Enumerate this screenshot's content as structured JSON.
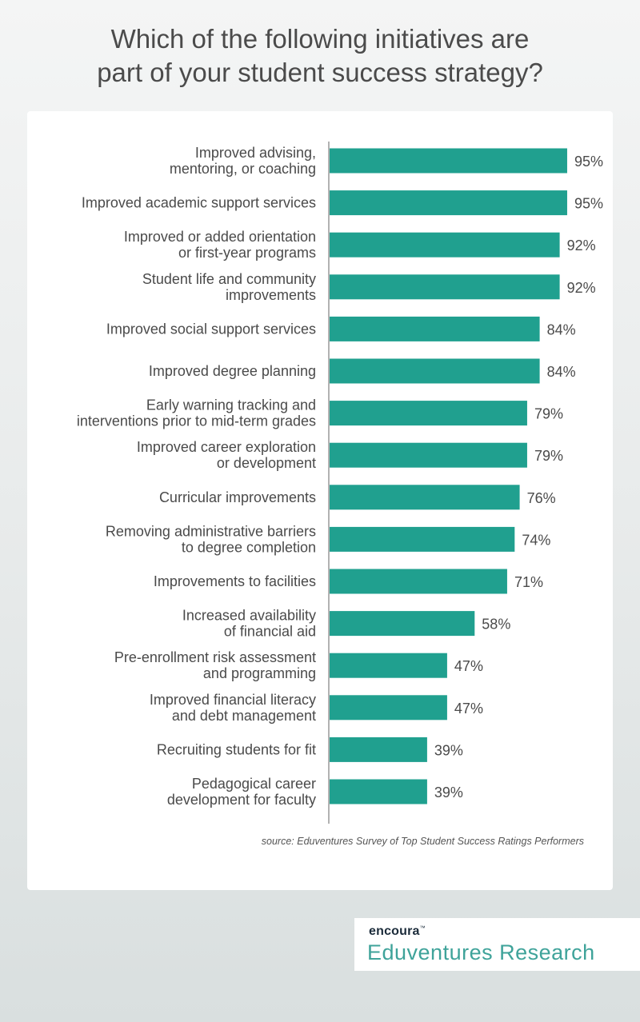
{
  "header": {
    "title_line1": "Which of the following initiatives are",
    "title_line2": "part of your student success strategy?"
  },
  "colors": {
    "bar": "#20a08f",
    "axis": "#666666",
    "label_text": "#4a4a4a",
    "value_text": "#4a4a4a"
  },
  "chart_data": {
    "type": "bar",
    "orientation": "horizontal",
    "title": "Which of the following initiatives are part of your student success strategy?",
    "xlim": [
      0,
      100
    ],
    "grid": false,
    "value_suffix": "%",
    "categories": [
      [
        "Improved advising,",
        "mentoring, or coaching"
      ],
      [
        "Improved academic support services"
      ],
      [
        "Improved or added orientation",
        "or first-year programs"
      ],
      [
        "Student life and community",
        "improvements"
      ],
      [
        "Improved social support services"
      ],
      [
        "Improved degree planning"
      ],
      [
        "Early warning tracking and",
        "interventions prior to mid-term grades"
      ],
      [
        "Improved career exploration",
        "or development"
      ],
      [
        "Curricular improvements"
      ],
      [
        "Removing administrative barriers",
        "to degree completion"
      ],
      [
        "Improvements to facilities"
      ],
      [
        "Increased availability",
        "of financial aid"
      ],
      [
        "Pre-enrollment risk assessment",
        "and programming"
      ],
      [
        "Improved financial literacy",
        "and debt management"
      ],
      [
        "Recruiting students for fit"
      ],
      [
        "Pedagogical career",
        "development for faculty"
      ]
    ],
    "values": [
      95,
      95,
      92,
      92,
      84,
      84,
      79,
      79,
      76,
      74,
      71,
      58,
      47,
      47,
      39,
      39
    ],
    "value_labels": [
      "95%",
      "95%",
      "92%",
      "92%",
      "84%",
      "84%",
      "79%",
      "79%",
      "76%",
      "74%",
      "71%",
      "58%",
      "47%",
      "47%",
      "39%",
      "39%"
    ]
  },
  "footer": {
    "source": "source: Eduventures Survey of Top Student Success Ratings Performers"
  },
  "brand": {
    "wordmark": "encoura",
    "trademark": "™",
    "name": "Eduventures Research"
  }
}
